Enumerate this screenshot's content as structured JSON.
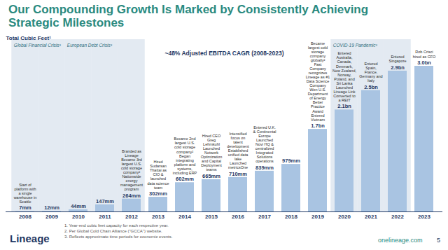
{
  "chart_data": {
    "type": "bar",
    "title": "Our Compounding Growth Is Marked by Consistently Achieving Strategic Milestones",
    "subtitle": "Total Cubic Feet¹",
    "categories": [
      "2008",
      "2009",
      "2010",
      "2011",
      "2012",
      "2013",
      "2014",
      "2015",
      "2016",
      "2017",
      "2018",
      "2019",
      "2020",
      "2021",
      "2022",
      "2023"
    ],
    "values": [
      7,
      12,
      44,
      147,
      264,
      302,
      602,
      665,
      710,
      839,
      979,
      1700,
      2100,
      2500,
      2900,
      3000
    ],
    "value_labels": [
      "7mm",
      "12mm",
      "44mm",
      "147mm",
      "264mm",
      "302mm",
      "602mm",
      "665mm",
      "710mm",
      "839mm",
      "979mm",
      "1.7bn",
      "2.1bn",
      "2.5bn",
      "2.9bn",
      "3.0bn"
    ],
    "data_labels": true,
    "color": "#a9c4e2",
    "ylim": [
      0,
      3000
    ],
    "tick_labels": "x",
    "annotations": [
      "~48% Adjusted EBITDA CAGR (2008-2023)"
    ],
    "periods": [
      {
        "label": "Global Financial Crisis³",
        "from": "2008",
        "to": "2009"
      },
      {
        "label": "European Debt Crisis³",
        "from": "2010",
        "to": "2012"
      },
      {
        "label": "COVID-19 Pandemic³",
        "from": "2020",
        "to": "2022"
      }
    ],
    "milestones": [
      {
        "category": "2008",
        "items": [
          "Start of platform with a single warehouse in Seattle"
        ]
      },
      {
        "category": "2012",
        "items": [
          "Branded as Lineage",
          "Became 3rd largest U.S. cold storage company²",
          "Nationwide energy management program"
        ]
      },
      {
        "category": "2013",
        "items": [
          "Hired Sudarsan Thattai as CIO & launched data science team"
        ]
      },
      {
        "category": "2014",
        "items": [
          "Became 2nd largest U.S. cold storage company²",
          "Began integrating platform and systems, including ERP"
        ]
      },
      {
        "category": "2015",
        "items": [
          "Hired CEO Greg Lehmkuhl",
          "Launched Network Optimization and Capital Deployment teams"
        ]
      },
      {
        "category": "2016",
        "items": [
          "Intensified focus on talent development",
          "Established unified data lake",
          "Launched metricsOne"
        ]
      },
      {
        "category": "2017",
        "items": [
          "Entered U.K. & Continental Europe",
          "Launched Novi HQ & centralized Integrated Solutions operations"
        ]
      },
      {
        "category": "2019",
        "items": [
          "Became largest cold storage company globally²",
          "Fast Company recognizes Lineage as #1 Data Science Company",
          "Won U.S. Department of Energy Better Practice Award",
          "Entered Vietnam"
        ]
      },
      {
        "category": "2020",
        "items": [
          "Entered Australia, Canada, Denmark, New Zealand, Norway, Poland, and Sri Lanka",
          "Launched Lineage Link",
          "Converted to a REIT"
        ]
      },
      {
        "category": "2021",
        "items": [
          "Entered Spain, France, Germany and Italy"
        ]
      },
      {
        "category": "2022",
        "items": [
          "Entered Singapore"
        ]
      },
      {
        "category": "2023",
        "items": [
          "Rob Crisci hired as CFO"
        ]
      }
    ],
    "footnotes": [
      "1. Year-end cubic feet capacity for each respective year.",
      "2. Per Global Cold Chain Alliance (\"GCCA\") website.",
      "3. Reflects approximate time periods for economic events."
    ],
    "footer": {
      "logo": "Lineage",
      "website": "onelineage.com",
      "page": "5"
    }
  }
}
